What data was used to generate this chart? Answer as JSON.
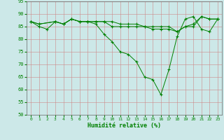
{
  "background_color": "#cce8e8",
  "grid_color": "#aacccc",
  "line_color": "#008000",
  "xlim": [
    -0.5,
    23.5
  ],
  "ylim": [
    50,
    95
  ],
  "yticks": [
    50,
    55,
    60,
    65,
    70,
    75,
    80,
    85,
    90,
    95
  ],
  "xticks": [
    0,
    1,
    2,
    3,
    4,
    5,
    6,
    7,
    8,
    9,
    10,
    11,
    12,
    13,
    14,
    15,
    16,
    17,
    18,
    19,
    20,
    21,
    22,
    23
  ],
  "series": [
    {
      "x": [
        0,
        1,
        3,
        4,
        5,
        6,
        7,
        8,
        9,
        10,
        11,
        12,
        13,
        14,
        15,
        16,
        17,
        18,
        19,
        20,
        21,
        22,
        23
      ],
      "y": [
        87,
        86,
        87,
        86,
        88,
        87,
        87,
        87,
        87,
        85,
        85,
        85,
        85,
        85,
        84,
        84,
        84,
        83,
        85,
        85,
        89,
        88,
        88
      ]
    },
    {
      "x": [
        0,
        1,
        3,
        4,
        5,
        6,
        7,
        8,
        9,
        10,
        11,
        12,
        13,
        14,
        15,
        16,
        17,
        18,
        19,
        20,
        21,
        22,
        23
      ],
      "y": [
        87,
        86,
        87,
        86,
        88,
        87,
        87,
        87,
        87,
        87,
        86,
        86,
        86,
        85,
        85,
        85,
        85,
        83,
        85,
        86,
        89,
        88,
        88
      ]
    },
    {
      "x": [
        0,
        1,
        2,
        3,
        4,
        5,
        6,
        7,
        8,
        9,
        10,
        11,
        12,
        13,
        14,
        15,
        16,
        17,
        18,
        19,
        20,
        21,
        22,
        23
      ],
      "y": [
        87,
        85,
        84,
        87,
        86,
        88,
        87,
        87,
        86,
        82,
        79,
        75,
        74,
        71,
        65,
        64,
        58,
        68,
        81,
        88,
        89,
        84,
        83,
        88
      ]
    }
  ],
  "xlabel_display": "Humidité relative (%)",
  "tick_color": "#008000",
  "label_color": "#008000"
}
